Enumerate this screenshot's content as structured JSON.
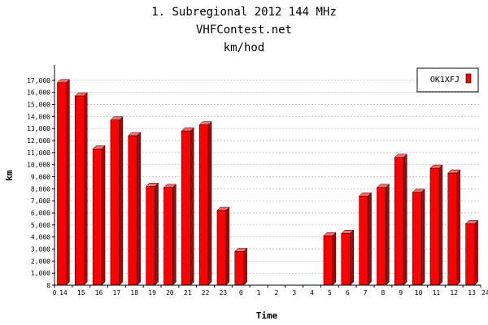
{
  "chart_data": {
    "type": "bar",
    "title_lines": [
      "1. Subregional 2012 144 MHz",
      "VHFContest.net",
      "km/hod"
    ],
    "xlabel": "Time",
    "ylabel": "km",
    "x_edge_labels": [
      "0",
      "24"
    ],
    "categories": [
      "14",
      "15",
      "16",
      "17",
      "18",
      "19",
      "20",
      "21",
      "22",
      "23",
      "0",
      "1",
      "2",
      "3",
      "4",
      "5",
      "6",
      "7",
      "8",
      "9",
      "10",
      "11",
      "12",
      "13"
    ],
    "series": [
      {
        "name": "OK1XFJ",
        "color": "#ff0000",
        "values": [
          16800,
          15700,
          11300,
          13700,
          12400,
          8200,
          8100,
          12800,
          13300,
          6200,
          2800,
          0,
          0,
          0,
          0,
          4100,
          4300,
          7400,
          8100,
          10600,
          7700,
          9700,
          9300,
          5100
        ]
      }
    ],
    "ylim": [
      0,
      18000
    ],
    "yticks": [
      {
        "value": 0,
        "label": "0"
      },
      {
        "value": 1000,
        "label": "1,000"
      },
      {
        "value": 2000,
        "label": "2,000"
      },
      {
        "value": 3000,
        "label": "3,000"
      },
      {
        "value": 4000,
        "label": "4,000"
      },
      {
        "value": 5000,
        "label": "5,000"
      },
      {
        "value": 6000,
        "label": "6,000"
      },
      {
        "value": 7000,
        "label": "7,000"
      },
      {
        "value": 8000,
        "label": "8,000"
      },
      {
        "value": 9000,
        "label": "9,000"
      },
      {
        "value": 10000,
        "label": "10,000"
      },
      {
        "value": 11000,
        "label": "11,000"
      },
      {
        "value": 12000,
        "label": "12,000"
      },
      {
        "value": 13000,
        "label": "13,000"
      },
      {
        "value": 14000,
        "label": "14,000"
      },
      {
        "value": 15000,
        "label": "15,000"
      },
      {
        "value": 16000,
        "label": "16,000"
      },
      {
        "value": 17000,
        "label": "17,000"
      }
    ],
    "grid": true,
    "legend_position": "top-right"
  }
}
